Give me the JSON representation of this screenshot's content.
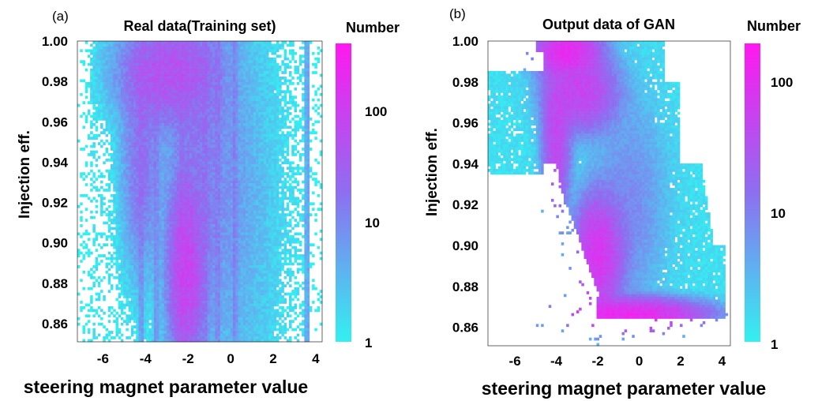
{
  "colorscale": {
    "low": "#33f0f0",
    "mid": "#8d6ff0",
    "high": "#ff18f0"
  },
  "panels": [
    {
      "tag": "(a)",
      "title": "Real data(Training set)",
      "xlabel": "steering magnet parameter value",
      "ylabel": "Injection eff.",
      "colorbar": {
        "title": "Number",
        "ticks": [
          "1",
          "10",
          "100"
        ],
        "scale": "log"
      }
    },
    {
      "tag": "(b)",
      "title": "Output data of GAN",
      "xlabel": "steering magnet parameter value",
      "ylabel": "Injection eff.",
      "colorbar": {
        "title": "Number",
        "ticks": [
          "1",
          "10",
          "100"
        ],
        "scale": "log"
      }
    }
  ],
  "chart_data": [
    {
      "type": "heatmap",
      "title": "Real data(Training set)",
      "xlabel": "steering magnet parameter value",
      "ylabel": "Injection eff.",
      "xticks": [
        "-6",
        "-4",
        "-2",
        "0",
        "2",
        "4"
      ],
      "xtick_values": [
        -6,
        -4,
        -2,
        0,
        2,
        4
      ],
      "yticks": [
        "1.00",
        "0.98",
        "0.96",
        "0.94",
        "0.92",
        "0.90",
        "0.88",
        "0.86"
      ],
      "ytick_values": [
        1.0,
        0.98,
        0.96,
        0.94,
        0.92,
        0.9,
        0.88,
        0.86
      ],
      "xlim": [
        -7.2,
        4.3
      ],
      "ylim": [
        0.851,
        1.0
      ],
      "colorbar": {
        "label": "Number",
        "scale": "log",
        "range": [
          1,
          300
        ],
        "ticks": [
          1,
          10,
          100
        ]
      },
      "density_regions": [
        {
          "x": -3.0,
          "y": 0.985,
          "sx": 1.2,
          "sy": 0.014,
          "peak": 40
        },
        {
          "x": -4.2,
          "y": 0.94,
          "sx": 0.5,
          "sy": 0.03,
          "peak": 15
        },
        {
          "x": -2.1,
          "y": 0.885,
          "sx": 0.45,
          "sy": 0.025,
          "peak": 70
        },
        {
          "x": -1.5,
          "y": 0.95,
          "sx": 0.9,
          "sy": 0.05,
          "peak": 10
        },
        {
          "x": 0.0,
          "y": 0.92,
          "sx": 1.2,
          "sy": 0.06,
          "peak": 4
        }
      ],
      "stripe_x": [
        -4.2,
        -3.5,
        -2.3,
        -1.2,
        -0.6,
        0.2,
        3.6
      ],
      "support_x": [
        -6.5,
        3.5
      ]
    },
    {
      "type": "heatmap",
      "title": "Output data of GAN",
      "xlabel": "steering magnet parameter value",
      "ylabel": "Injection eff.",
      "xticks": [
        "-6",
        "-4",
        "-2",
        "0",
        "2",
        "4"
      ],
      "xtick_values": [
        -6,
        -4,
        -2,
        0,
        2,
        4
      ],
      "yticks": [
        "1.00",
        "0.98",
        "0.96",
        "0.94",
        "0.92",
        "0.90",
        "0.88",
        "0.86"
      ],
      "ytick_values": [
        1.0,
        0.98,
        0.96,
        0.94,
        0.92,
        0.9,
        0.88,
        0.86
      ],
      "xlim": [
        -7.3,
        4.4
      ],
      "ylim": [
        0.851,
        1.0
      ],
      "colorbar": {
        "label": "Number",
        "scale": "log",
        "range": [
          1,
          300
        ],
        "ticks": [
          1,
          10,
          100
        ]
      },
      "density_regions": [
        {
          "x": -3.5,
          "y": 0.995,
          "sx": 0.8,
          "sy": 0.006,
          "peak": 150
        },
        {
          "x": -0.5,
          "y": 0.866,
          "sx": 1.8,
          "sy": 0.004,
          "peak": 180
        },
        {
          "x": -2.0,
          "y": 0.895,
          "sx": 0.6,
          "sy": 0.015,
          "peak": 110
        },
        {
          "x": -2.8,
          "y": 0.975,
          "sx": 0.9,
          "sy": 0.01,
          "peak": 70
        },
        {
          "x": -4.0,
          "y": 0.95,
          "sx": 0.35,
          "sy": 0.02,
          "peak": 60
        },
        {
          "x": -0.5,
          "y": 0.92,
          "sx": 1.0,
          "sy": 0.03,
          "peak": 8
        }
      ]
    }
  ]
}
